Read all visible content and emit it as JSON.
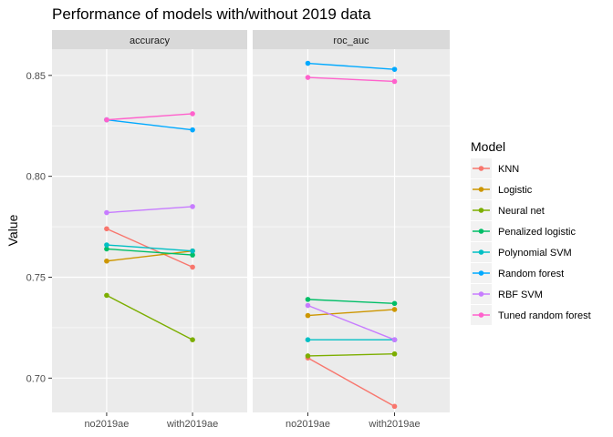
{
  "chart_data": {
    "type": "line",
    "title": "Performance of models with/without 2019 data",
    "ylabel": "Value",
    "xlabel": "",
    "categories": [
      "no2019ae",
      "with2019ae"
    ],
    "ylim": [
      0.683,
      0.863
    ],
    "yticks": [
      0.7,
      0.75,
      0.8,
      0.85
    ],
    "ytick_labels": [
      "0.70",
      "0.75",
      "0.80",
      "0.85"
    ],
    "grid": true,
    "legend_title": "Model",
    "legend_position": "right",
    "colors": {
      "KNN": "#F8766D",
      "Logistic": "#CD9600",
      "Neural net": "#7CAE00",
      "Penalized logistic": "#00BE67",
      "Polynomial SVM": "#00BFC4",
      "Random forest": "#00A9FF",
      "RBF SVM": "#C77CFF",
      "Tuned random forest": "#FF61CC"
    },
    "panels": [
      {
        "name": "accuracy",
        "series": [
          {
            "name": "KNN",
            "values": [
              0.774,
              0.755
            ]
          },
          {
            "name": "Logistic",
            "values": [
              0.758,
              0.763
            ]
          },
          {
            "name": "Neural net",
            "values": [
              0.741,
              0.719
            ]
          },
          {
            "name": "Penalized logistic",
            "values": [
              0.764,
              0.761
            ]
          },
          {
            "name": "Polynomial SVM",
            "values": [
              0.766,
              0.763
            ]
          },
          {
            "name": "Random forest",
            "values": [
              0.828,
              0.823
            ]
          },
          {
            "name": "RBF SVM",
            "values": [
              0.782,
              0.785
            ]
          },
          {
            "name": "Tuned random forest",
            "values": [
              0.828,
              0.831
            ]
          }
        ]
      },
      {
        "name": "roc_auc",
        "series": [
          {
            "name": "KNN",
            "values": [
              0.71,
              0.686
            ]
          },
          {
            "name": "Logistic",
            "values": [
              0.731,
              0.734
            ]
          },
          {
            "name": "Neural net",
            "values": [
              0.711,
              0.712
            ]
          },
          {
            "name": "Penalized logistic",
            "values": [
              0.739,
              0.737
            ]
          },
          {
            "name": "Polynomial SVM",
            "values": [
              0.719,
              0.719
            ]
          },
          {
            "name": "Random forest",
            "values": [
              0.856,
              0.853
            ]
          },
          {
            "name": "RBF SVM",
            "values": [
              0.736,
              0.719
            ]
          },
          {
            "name": "Tuned random forest",
            "values": [
              0.849,
              0.847
            ]
          }
        ]
      }
    ]
  }
}
